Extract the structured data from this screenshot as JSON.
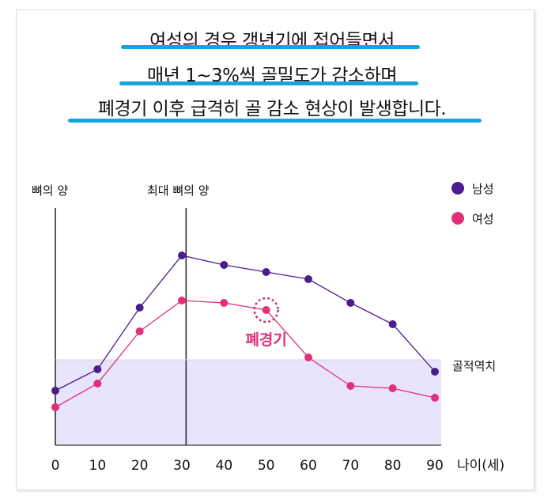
{
  "headline": {
    "lines": [
      "여성의 경우 갱년기에 접어들면서",
      "매년 1~3%씩 골밀도가 감소하며",
      "폐경기 이후 급격히 골 감소 현상이 발생합니다."
    ]
  },
  "colors": {
    "male": "#4b1c8c",
    "female": "#e0307a",
    "threshold_fill": "#e8e4fb",
    "underline": "#11a6de"
  },
  "chart_data": {
    "type": "line",
    "title": "",
    "xlabel": "나이(세)",
    "ylabel": "뼈의 양",
    "x": [
      0,
      10,
      20,
      30,
      40,
      50,
      60,
      70,
      80,
      90
    ],
    "xticks": [
      "0",
      "10",
      "20",
      "30",
      "40",
      "50",
      "60",
      "70",
      "80",
      "90"
    ],
    "ylim": [
      0,
      100
    ],
    "yticks_shown": false,
    "grid": false,
    "legend_position": "top-right",
    "series": [
      {
        "name": "남성",
        "color": "#4b1c8c",
        "values": [
          23,
          32,
          58,
          80,
          76,
          73,
          70,
          60,
          51,
          31
        ]
      },
      {
        "name": "여성",
        "color": "#e0307a",
        "values": [
          16,
          26,
          48,
          61,
          60,
          57,
          37,
          25,
          24,
          20
        ]
      }
    ],
    "threshold": {
      "label": "골적역치",
      "value": 36
    },
    "peak_marker": {
      "label": "최대 뼈의 양",
      "x": 31
    },
    "annotation": {
      "label": "폐경기",
      "x": 50,
      "series": "여성"
    }
  }
}
